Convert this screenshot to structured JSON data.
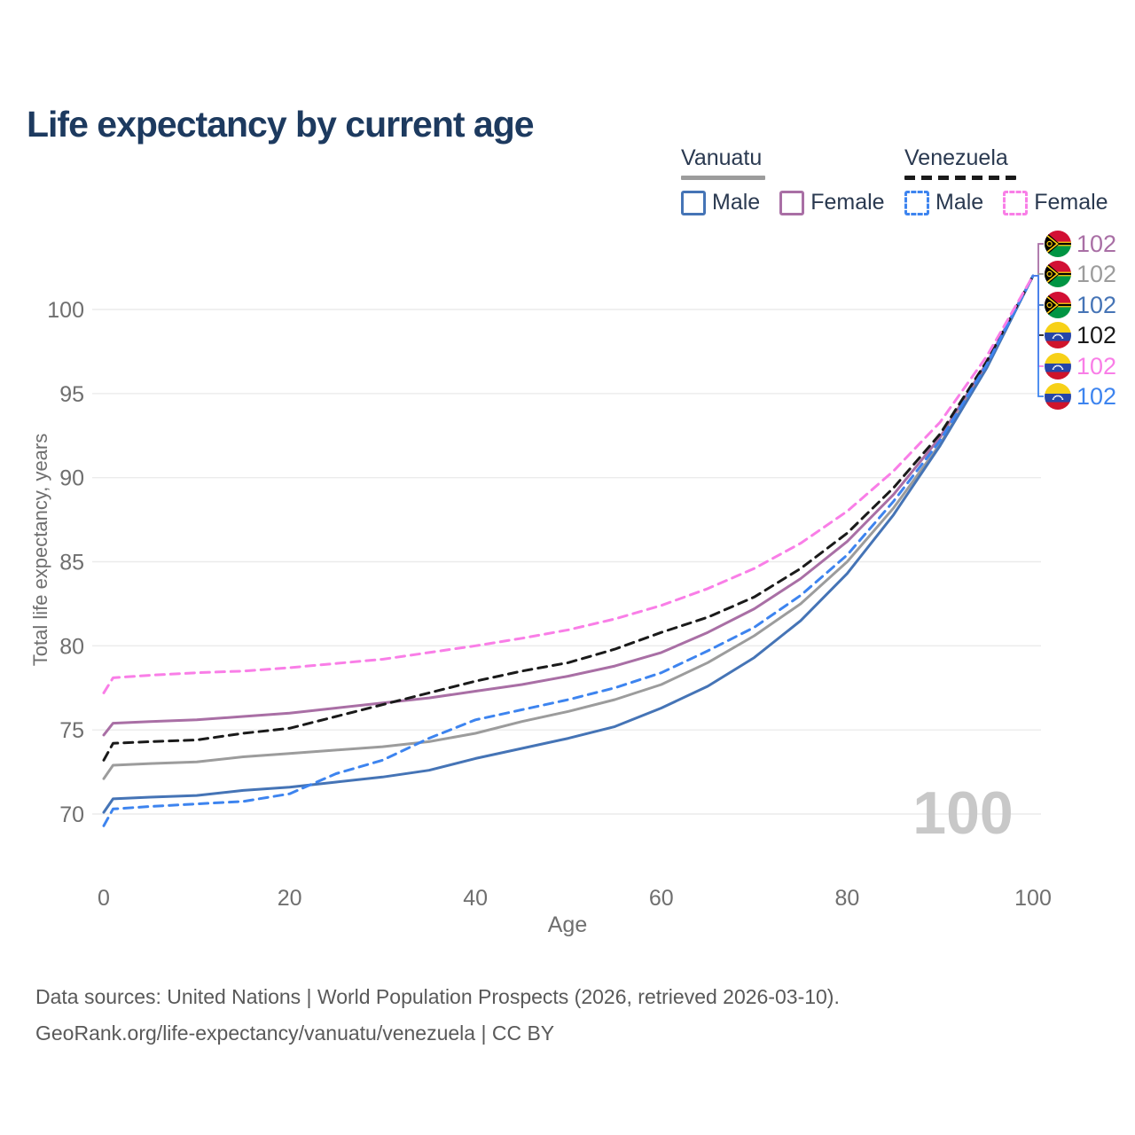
{
  "title": "Life expectancy by current age",
  "legend": {
    "groups": [
      {
        "country": "Vanuatu",
        "items": [
          {
            "label": "Male"
          },
          {
            "label": "Female"
          }
        ]
      },
      {
        "country": "Venezuela",
        "items": [
          {
            "label": "Male"
          },
          {
            "label": "Female"
          }
        ]
      }
    ]
  },
  "colors": {
    "title": "#1d3a5f",
    "legend_text": "#2a3950",
    "axis_text": "#6f6f6f",
    "gridline": "#ebebeb",
    "watermark": "#c8c8c8",
    "footer_text": "#595959",
    "vanuatu_male": "#4574b6",
    "vanuatu_female": "#a96fa5",
    "vanuatu_total": "#9c9c9c",
    "venezuela_male": "#3d84ef",
    "venezuela_female": "#f97ee7",
    "venezuela_total": "#1a1a1a"
  },
  "chart_data": {
    "type": "line",
    "title": "Life expectancy by current age",
    "xlabel": "Age",
    "ylabel": "Total life expectancy, years",
    "xlim": [
      0,
      100
    ],
    "ylim": [
      69,
      103
    ],
    "xticks": [
      0,
      20,
      40,
      60,
      80,
      100
    ],
    "yticks": [
      70,
      75,
      80,
      85,
      90,
      95,
      100
    ],
    "grid": "horizontal",
    "legend_position": "top-right",
    "watermark": "100",
    "x": [
      0,
      1,
      5,
      10,
      15,
      20,
      25,
      30,
      35,
      40,
      45,
      50,
      55,
      60,
      65,
      70,
      75,
      80,
      85,
      90,
      95,
      100
    ],
    "series": [
      {
        "id": "vanuatu-total",
        "name": "Vanuatu (both sexes)",
        "color_key": "vanuatu_total",
        "dash": false,
        "values": [
          72.1,
          72.9,
          73.0,
          73.1,
          73.4,
          73.6,
          73.8,
          74.0,
          74.3,
          74.8,
          75.5,
          76.1,
          76.8,
          77.7,
          79.0,
          80.6,
          82.5,
          85.0,
          88.2,
          92.0,
          96.6,
          102
        ]
      },
      {
        "id": "vanuatu-female",
        "name": "Vanuatu Female",
        "color_key": "vanuatu_female",
        "dash": false,
        "values": [
          74.7,
          75.4,
          75.5,
          75.6,
          75.8,
          76.0,
          76.3,
          76.6,
          76.9,
          77.3,
          77.7,
          78.2,
          78.8,
          79.6,
          80.8,
          82.2,
          84.0,
          86.2,
          89.0,
          92.4,
          96.8,
          102
        ]
      },
      {
        "id": "vanuatu-male",
        "name": "Vanuatu Male",
        "color_key": "vanuatu_male",
        "dash": false,
        "values": [
          70.1,
          70.9,
          71.0,
          71.1,
          71.4,
          71.6,
          71.9,
          72.2,
          72.6,
          73.3,
          73.9,
          74.5,
          75.2,
          76.3,
          77.6,
          79.3,
          81.5,
          84.3,
          87.8,
          91.9,
          96.5,
          102
        ]
      },
      {
        "id": "venezuela-total",
        "name": "Venezuela (both sexes)",
        "color_key": "venezuela_total",
        "dash": true,
        "values": [
          73.2,
          74.2,
          74.3,
          74.4,
          74.8,
          75.1,
          75.8,
          76.5,
          77.2,
          77.9,
          78.5,
          79.0,
          79.8,
          80.8,
          81.7,
          82.9,
          84.6,
          86.7,
          89.4,
          92.6,
          96.9,
          102
        ]
      },
      {
        "id": "venezuela-male",
        "name": "Venezuela Male",
        "color_key": "venezuela_male",
        "dash": true,
        "values": [
          69.3,
          70.3,
          70.45,
          70.6,
          70.75,
          71.2,
          72.4,
          73.2,
          74.5,
          75.6,
          76.2,
          76.8,
          77.5,
          78.4,
          79.7,
          81.1,
          83.0,
          85.4,
          88.6,
          92.2,
          96.7,
          102
        ]
      },
      {
        "id": "venezuela-female",
        "name": "Venezuela Female",
        "color_key": "venezuela_female",
        "dash": true,
        "values": [
          77.2,
          78.1,
          78.25,
          78.4,
          78.5,
          78.7,
          78.95,
          79.2,
          79.6,
          80.0,
          80.45,
          80.95,
          81.6,
          82.4,
          83.4,
          84.6,
          86.1,
          88.0,
          90.4,
          93.3,
          97.2,
          102
        ]
      }
    ],
    "right_labels": [
      {
        "id": "vanuatu-female",
        "flag": "vanuatu",
        "value": "102",
        "color_key": "vanuatu_female"
      },
      {
        "id": "vanuatu-total",
        "flag": "vanuatu",
        "value": "102",
        "color_key": "vanuatu_total"
      },
      {
        "id": "vanuatu-male",
        "flag": "vanuatu",
        "value": "102",
        "color_key": "vanuatu_male"
      },
      {
        "id": "venezuela-total",
        "flag": "venezuela",
        "value": "102",
        "color_key": "venezuela_total"
      },
      {
        "id": "venezuela-female",
        "flag": "venezuela",
        "value": "102",
        "color_key": "venezuela_female"
      },
      {
        "id": "venezuela-male",
        "flag": "venezuela",
        "value": "102",
        "color_key": "venezuela_male"
      }
    ]
  },
  "footer": {
    "line1": "Data sources: United Nations | World Population Prospects (2026, retrieved 2026-03-10).",
    "line2": "GeoRank.org/life-expectancy/vanuatu/venezuela | CC BY"
  }
}
